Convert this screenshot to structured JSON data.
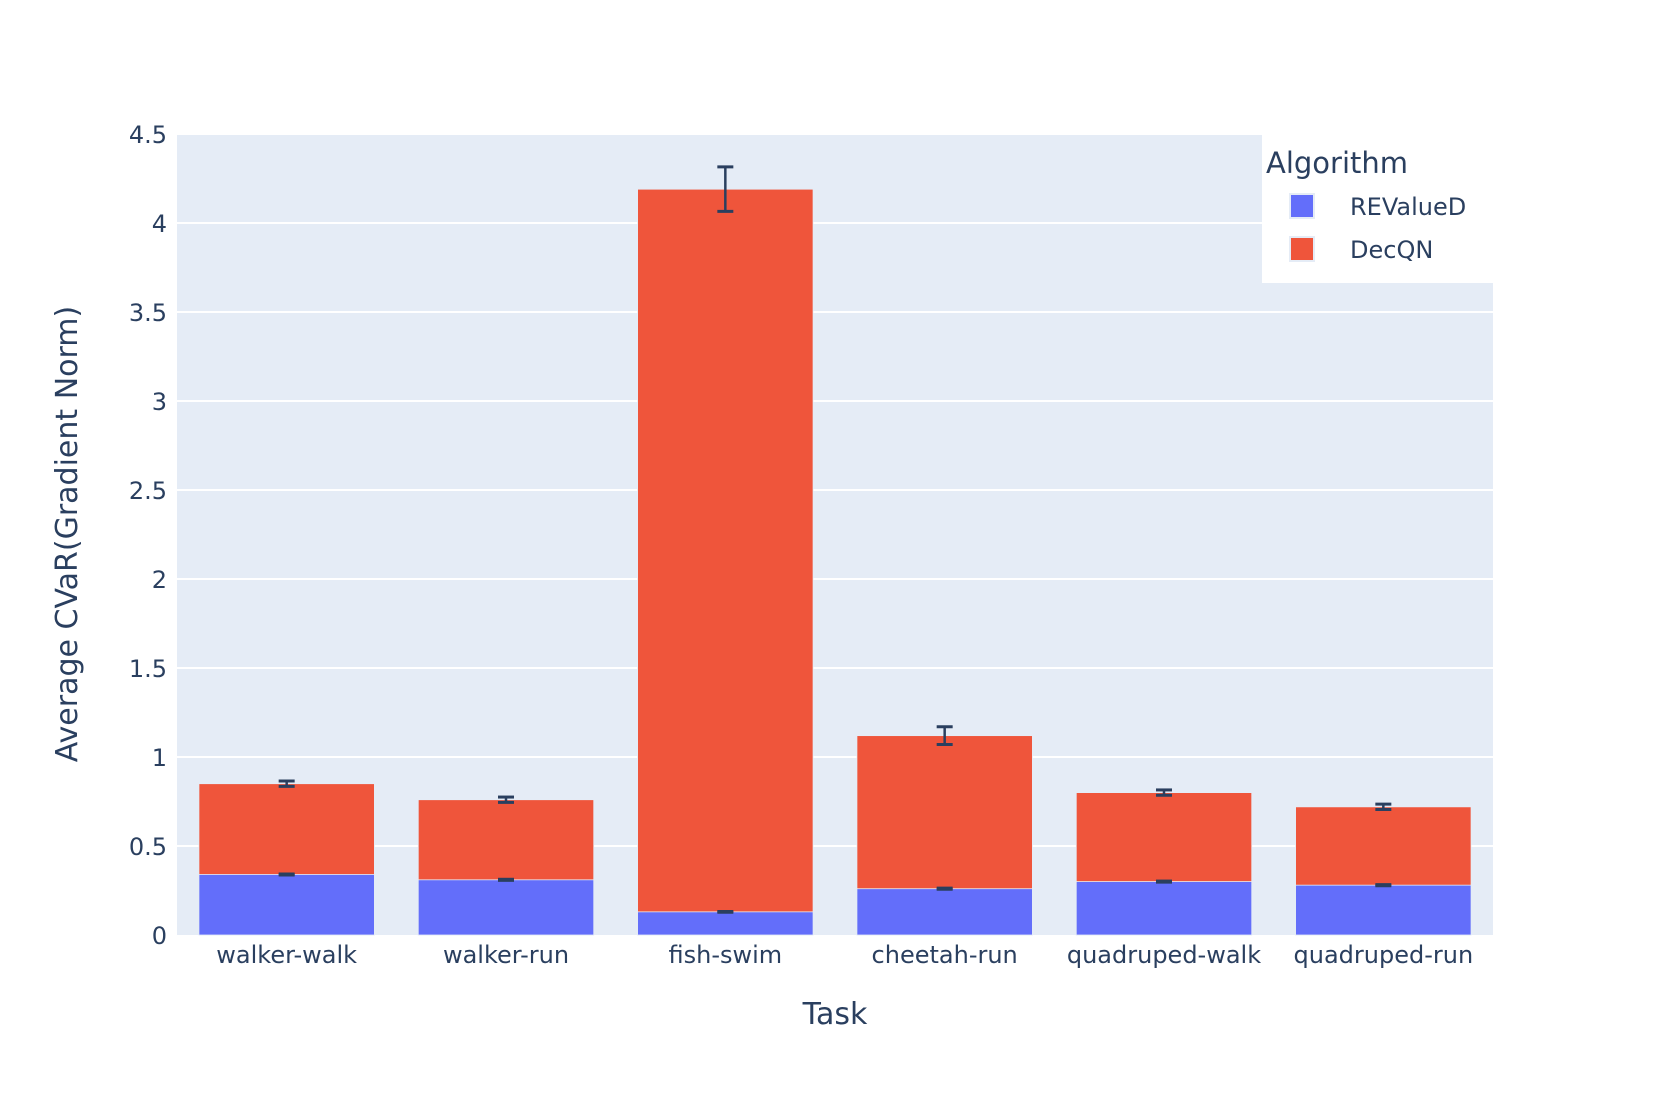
{
  "chart_data": {
    "type": "bar",
    "barmode": "overlay",
    "title": "",
    "xlabel": "Task",
    "ylabel": "Average CVaR(Gradient Norm)",
    "categories": [
      "walker-walk",
      "walker-run",
      "fish-swim",
      "cheetah-run",
      "quadruped-walk",
      "quadruped-run"
    ],
    "ylim": [
      0,
      4.5
    ],
    "yticks": [
      0,
      0.5,
      1,
      1.5,
      2,
      2.5,
      3,
      3.5,
      4,
      4.5
    ],
    "ytick_labels": [
      "0",
      "0.5",
      "1",
      "1.5",
      "2",
      "2.5",
      "3",
      "3.5",
      "4",
      "4.5"
    ],
    "grid": true,
    "legend": {
      "title": "Algorithm",
      "placement": "top-right"
    },
    "series": [
      {
        "name": "DecQN",
        "color": "#ef553b",
        "values": [
          0.85,
          0.76,
          4.19,
          1.12,
          0.8,
          0.72
        ],
        "errors": [
          0.015,
          0.015,
          0.125,
          0.05,
          0.015,
          0.015
        ]
      },
      {
        "name": "REValueD",
        "color": "#636efa",
        "values": [
          0.34,
          0.31,
          0.13,
          0.26,
          0.3,
          0.28
        ],
        "errors": [
          0.003,
          0.003,
          0.002,
          0.003,
          0.003,
          0.003
        ]
      }
    ],
    "legend_order": [
      "REValueD",
      "DecQN"
    ]
  }
}
